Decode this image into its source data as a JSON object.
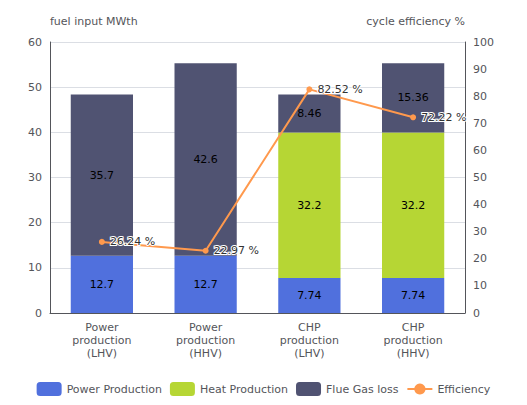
{
  "chart_data": {
    "type": "bar",
    "categories": [
      "Power\nproduction\n(LHV)",
      "Power\nproduction\n(HHV)",
      "CHP\nproduction\n(LHV)",
      "CHP\nproduction\n(HHV)"
    ],
    "ylabel": "fuel input MWth",
    "y2label": "cycle efficiency %",
    "ylim": [
      0,
      60
    ],
    "yticks": [
      0,
      10,
      20,
      30,
      40,
      50,
      60
    ],
    "y2lim": [
      0,
      100
    ],
    "y2ticks": [
      0,
      10,
      20,
      30,
      40,
      50,
      60,
      70,
      80,
      90,
      100
    ],
    "stacked": true,
    "grid": true,
    "data_labels": true,
    "legend": "bottom",
    "series": [
      {
        "name": "Power Production",
        "values": [
          12.7,
          12.7,
          7.74,
          7.74
        ]
      },
      {
        "name": "Heat Production",
        "values": [
          0.0,
          0.0,
          32.2,
          32.2
        ]
      },
      {
        "name": "Flue Gas loss",
        "values": [
          35.7,
          42.6,
          8.46,
          15.36
        ]
      },
      {
        "name": "Efficiency",
        "type": "line",
        "axis": "y2",
        "marker": "circle",
        "values": [
          26.24,
          22.97,
          82.52,
          72.22
        ],
        "value_labels": [
          "26.24 %",
          "22.97 %",
          "82.52 %",
          "72.22 %"
        ]
      }
    ]
  }
}
